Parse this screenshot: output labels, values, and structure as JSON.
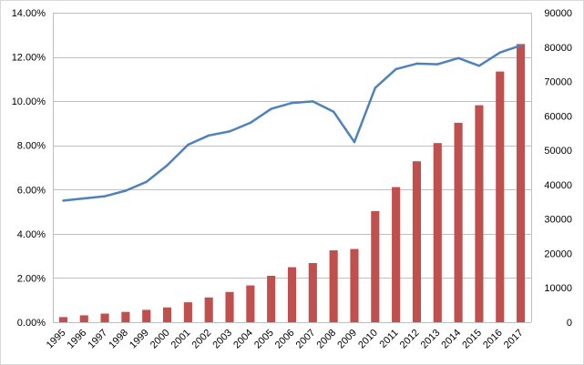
{
  "chart_data": {
    "type": "bar",
    "title": "",
    "xlabel": "",
    "ylabel": "",
    "y2label": "",
    "categories": [
      "1995",
      "1996",
      "1997",
      "1998",
      "1999",
      "2000",
      "2001",
      "2002",
      "2003",
      "2004",
      "2005",
      "2006",
      "2007",
      "2008",
      "2009",
      "2010",
      "2011",
      "2012",
      "2013",
      "2014",
      "2015",
      "2016",
      "2017"
    ],
    "series": [
      {
        "type": "bar",
        "axis": "right",
        "color": "#c0504d",
        "values": [
          1500,
          2000,
          2500,
          3000,
          3600,
          4300,
          5800,
          7200,
          8800,
          10700,
          13500,
          16000,
          17200,
          20900,
          21300,
          32300,
          39300,
          46800,
          52100,
          58000,
          63100,
          72900,
          80900
        ]
      },
      {
        "type": "line",
        "axis": "left",
        "color": "#4f81bd",
        "values": [
          5.5,
          5.6,
          5.7,
          5.95,
          6.35,
          7.1,
          8.03,
          8.45,
          8.63,
          9.02,
          9.65,
          9.92,
          9.99,
          9.52,
          8.15,
          10.6,
          11.45,
          11.7,
          11.67,
          11.95,
          11.6,
          12.2,
          12.52
        ]
      }
    ],
    "y_left": {
      "ylim": [
        0,
        14
      ],
      "ticks": [
        0,
        2,
        4,
        6,
        8,
        10,
        12,
        14
      ],
      "tick_labels": [
        "0.00%",
        "2.00%",
        "4.00%",
        "6.00%",
        "8.00%",
        "10.00%",
        "12.00%",
        "14.00%"
      ]
    },
    "y_right": {
      "ylim": [
        0,
        90000
      ],
      "ticks": [
        0,
        10000,
        20000,
        30000,
        40000,
        50000,
        60000,
        70000,
        80000,
        90000
      ],
      "tick_labels": [
        "0",
        "10000",
        "20000",
        "30000",
        "40000",
        "50000",
        "60000",
        "70000",
        "80000",
        "90000"
      ]
    },
    "grid": true,
    "legend": "none"
  }
}
